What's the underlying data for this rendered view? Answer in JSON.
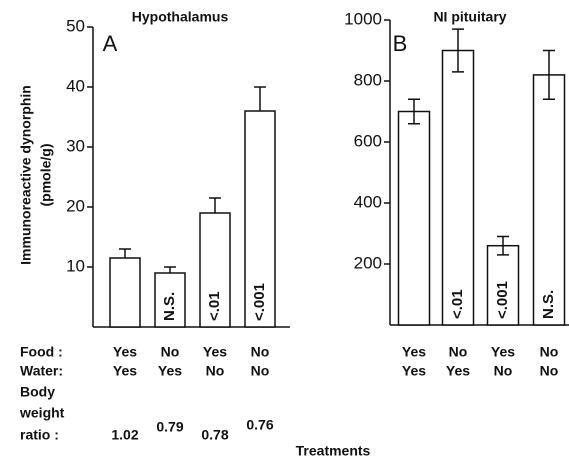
{
  "chart_data": [
    {
      "type": "bar",
      "title": "Hypothalamus",
      "panel": "A",
      "y_label": [
        "Immunoreactive dynorphin",
        "(pmole/g)"
      ],
      "values": [
        11.5,
        9,
        19,
        36
      ],
      "errors": [
        1.5,
        1,
        2.5,
        4
      ],
      "error_style": "upper",
      "value_labels": [
        null,
        "N.S.",
        "<.01",
        "<.001"
      ],
      "food": [
        "Yes",
        "No",
        "Yes",
        "No"
      ],
      "water": [
        "Yes",
        "Yes",
        "No",
        "No"
      ],
      "weight_ratio": [
        1.02,
        0.79,
        0.78,
        0.76
      ],
      "ylim": [
        0,
        50
      ],
      "yticks": [
        10,
        20,
        30,
        40,
        50
      ],
      "color": "#ffffff"
    },
    {
      "type": "bar",
      "title": "NI pituitary",
      "panel": "B",
      "values": [
        700,
        900,
        260,
        820
      ],
      "errors": [
        40,
        70,
        30,
        80
      ],
      "error_style": "both",
      "value_labels": [
        null,
        "<.01",
        "<.001",
        "N.S."
      ],
      "food": [
        "Yes",
        "No",
        "Yes",
        "No"
      ],
      "water": [
        "Yes",
        "Yes",
        "No",
        "No"
      ],
      "ylim": [
        0,
        1000
      ],
      "yticks": [
        200,
        400,
        600,
        800,
        1000
      ],
      "color": "#ffffff"
    }
  ],
  "row_labels": {
    "food": "Food :",
    "water": "Water:",
    "ratio": [
      "Body",
      "weight",
      "ratio :"
    ]
  },
  "x_label": "Treatments"
}
